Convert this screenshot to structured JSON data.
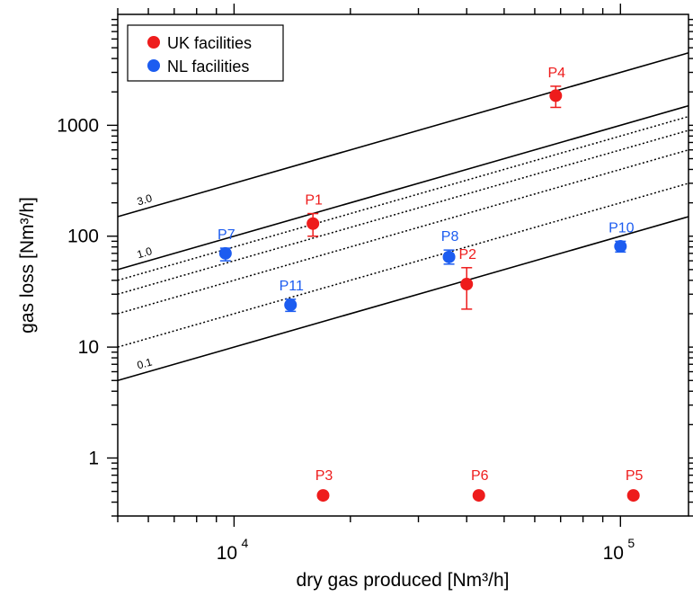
{
  "chart_data": {
    "type": "scatter",
    "xscale": "log",
    "yscale": "log",
    "xlim": [
      5000,
      150000
    ],
    "ylim": [
      0.3,
      10000
    ],
    "xlabel": "dry gas produced [Nm³/h]",
    "ylabel": "gas loss [Nm³/h]",
    "grid": false,
    "legend_position": "top-left",
    "x_ticks": [
      {
        "value": 10000,
        "base": "10",
        "exp": "4"
      },
      {
        "value": 100000,
        "base": "10",
        "exp": "5"
      }
    ],
    "y_ticks": [
      {
        "value": 1,
        "label": "1"
      },
      {
        "value": 10,
        "label": "10"
      },
      {
        "value": 100,
        "label": "100"
      },
      {
        "value": 1000,
        "label": "1000"
      }
    ],
    "series": [
      {
        "name": "UK facilities",
        "color": "#ee1c1c",
        "points": [
          {
            "label": "P1",
            "x": 16000,
            "y": 130,
            "err_low": 100,
            "err_high": 160
          },
          {
            "label": "P2",
            "x": 40000,
            "y": 37,
            "err_low": 22,
            "err_high": 52
          },
          {
            "label": "P3",
            "x": 17000,
            "y": 0.46
          },
          {
            "label": "P4",
            "x": 68000,
            "y": 1850,
            "err_low": 1450,
            "err_high": 2250
          },
          {
            "label": "P5",
            "x": 108000,
            "y": 0.46
          },
          {
            "label": "P6",
            "x": 43000,
            "y": 0.46
          }
        ]
      },
      {
        "name": "NL facilities",
        "color": "#1c5cf0",
        "points": [
          {
            "label": "P7",
            "x": 9500,
            "y": 70,
            "err_low": 60,
            "err_high": 78
          },
          {
            "label": "P8",
            "x": 36000,
            "y": 65,
            "err_low": 56,
            "err_high": 75
          },
          {
            "label": "P10",
            "x": 100000,
            "y": 81,
            "err_low": 72,
            "err_high": 90
          },
          {
            "label": "P11",
            "x": 14000,
            "y": 24,
            "err_low": 21,
            "err_high": 27
          }
        ]
      }
    ],
    "reference_lines": [
      {
        "fraction": 0.03,
        "style": "solid",
        "label": "3.0"
      },
      {
        "fraction": 0.01,
        "style": "solid",
        "label": "1.0"
      },
      {
        "fraction": 0.008,
        "style": "dotted",
        "label": ""
      },
      {
        "fraction": 0.006,
        "style": "dotted",
        "label": ""
      },
      {
        "fraction": 0.004,
        "style": "dotted",
        "label": ""
      },
      {
        "fraction": 0.002,
        "style": "dotted",
        "label": ""
      },
      {
        "fraction": 0.001,
        "style": "solid",
        "label": "0.1"
      }
    ]
  }
}
